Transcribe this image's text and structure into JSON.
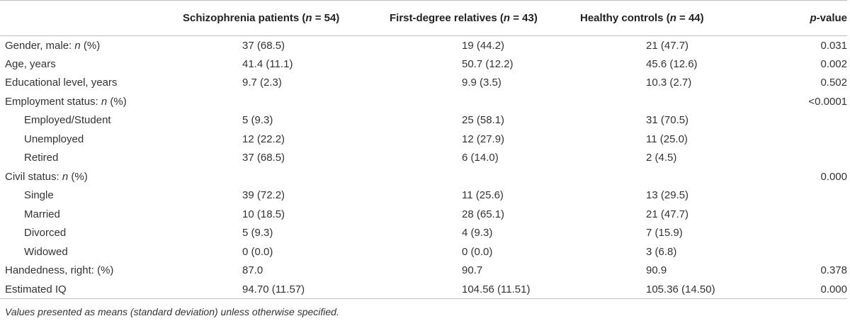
{
  "header": {
    "label": "",
    "col1": {
      "prefix": "Schizophrenia patients (",
      "var": "n",
      "suffix": " = 54)"
    },
    "col2": {
      "prefix": "First-degree relatives (",
      "var": "n",
      "suffix": " = 43)"
    },
    "col3": {
      "prefix": "Healthy controls (",
      "var": "n",
      "suffix": " = 44)"
    },
    "col4": {
      "var": "p",
      "suffix": "-value"
    }
  },
  "rows": [
    {
      "label": "Gender, male: ",
      "label_var": "n",
      "label_suffix": " (%)",
      "v1": "37 (68.5)",
      "v2": "19 (44.2)",
      "v3": "21 (47.7)",
      "p": "0.031"
    },
    {
      "label": "Age, years",
      "label_var": "",
      "label_suffix": "",
      "v1": "41.4 (11.1)",
      "v2": "50.7 (12.2)",
      "v3": "45.6 (12.6)",
      "p": "0.002"
    },
    {
      "label": "Educational level, years",
      "label_var": "",
      "label_suffix": "",
      "v1": "9.7 (2.3)",
      "v2": "9.9 (3.5)",
      "v3": "10.3 (2.7)",
      "p": "0.502"
    },
    {
      "label": "Employment status: ",
      "label_var": "n",
      "label_suffix": " (%)",
      "v1": "",
      "v2": "",
      "v3": "",
      "p": "<0.0001"
    },
    {
      "label": "Employed/Student",
      "label_var": "",
      "label_suffix": "",
      "v1": "5 (9.3)",
      "v2": "25 (58.1)",
      "v3": "31 (70.5)",
      "p": ""
    },
    {
      "label": "Unemployed",
      "label_var": "",
      "label_suffix": "",
      "v1": "12 (22.2)",
      "v2": "12 (27.9)",
      "v3": "11 (25.0)",
      "p": ""
    },
    {
      "label": "Retired",
      "label_var": "",
      "label_suffix": "",
      "v1": "37 (68.5)",
      "v2": "6 (14.0)",
      "v3": "2 (4.5)",
      "p": ""
    },
    {
      "label": "Civil status: ",
      "label_var": "n",
      "label_suffix": " (%)",
      "v1": "",
      "v2": "",
      "v3": "",
      "p": "0.000"
    },
    {
      "label": "Single",
      "label_var": "",
      "label_suffix": "",
      "v1": "39 (72.2)",
      "v2": "11 (25.6)",
      "v3": "13 (29.5)",
      "p": ""
    },
    {
      "label": "Married",
      "label_var": "",
      "label_suffix": "",
      "v1": "10 (18.5)",
      "v2": "28 (65.1)",
      "v3": "21 (47.7)",
      "p": ""
    },
    {
      "label": "Divorced",
      "label_var": "",
      "label_suffix": "",
      "v1": "5 (9.3)",
      "v2": "4 (9.3)",
      "v3": "7 (15.9)",
      "p": ""
    },
    {
      "label": "Widowed",
      "label_var": "",
      "label_suffix": "",
      "v1": "0 (0.0)",
      "v2": "0 (0.0)",
      "v3": "3 (6.8)",
      "p": ""
    },
    {
      "label": "Handedness, right: (%)",
      "label_var": "",
      "label_suffix": "",
      "v1": "87.0",
      "v2": "90.7",
      "v3": "90.9",
      "p": "0.378"
    },
    {
      "label": "Estimated IQ",
      "label_var": "",
      "label_suffix": "",
      "v1": "94.70 (11.57)",
      "v2": "104.56 (11.51)",
      "v3": "105.36 (14.50)",
      "p": "0.000"
    }
  ],
  "footnote": "Values presented as means (standard deviation) unless otherwise specified."
}
